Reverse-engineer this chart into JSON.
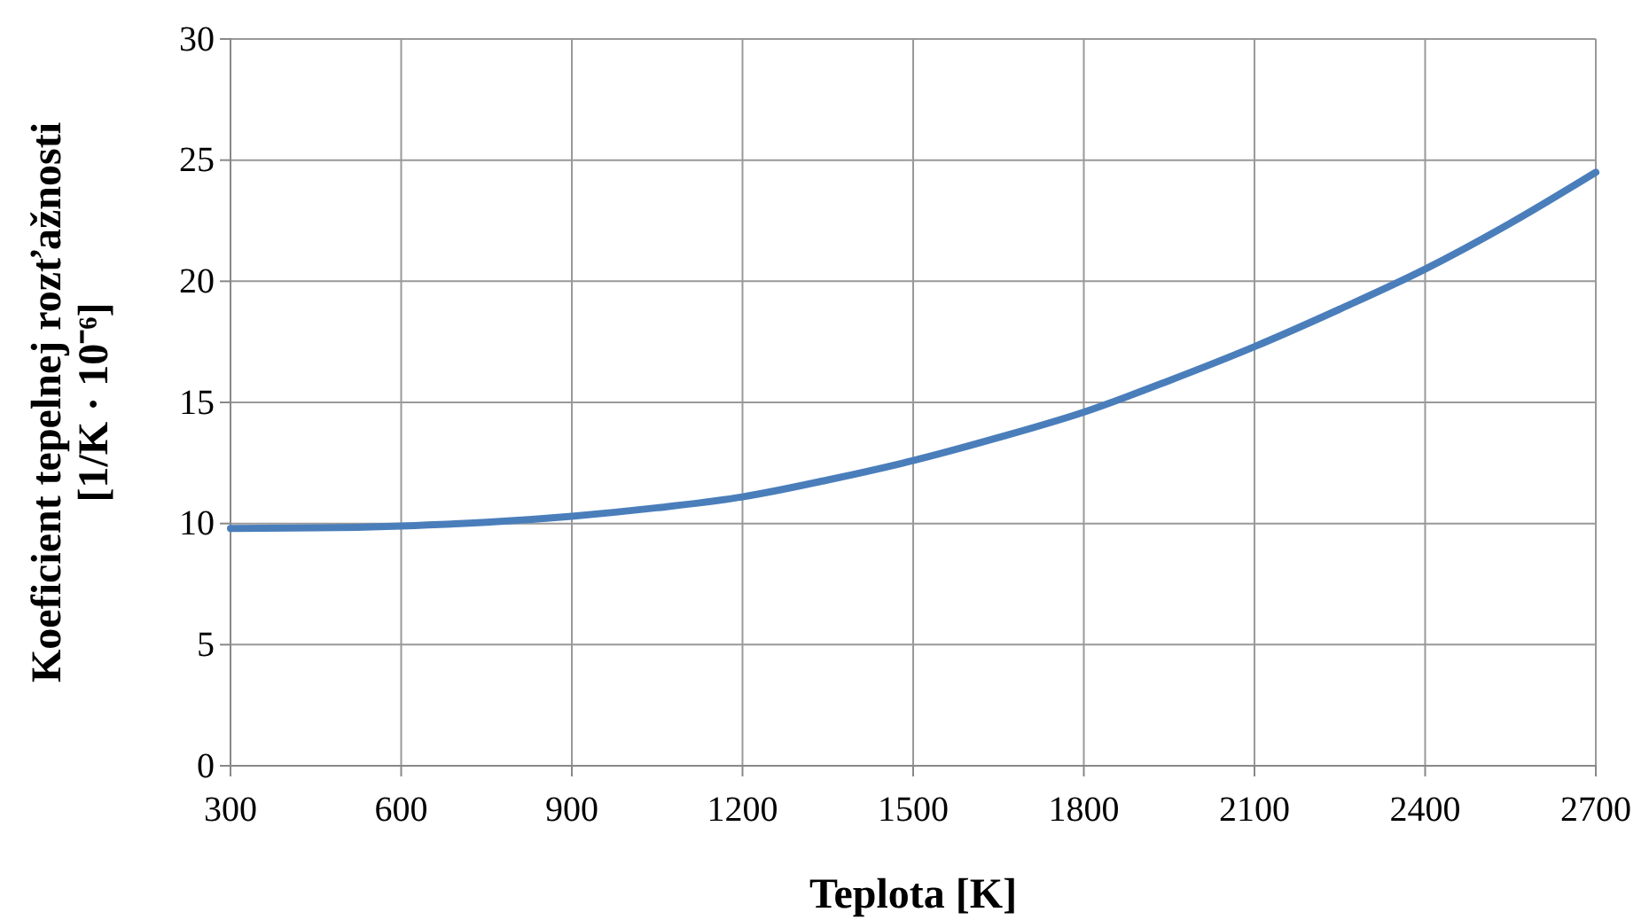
{
  "chart_data": {
    "type": "line",
    "xlabel": "Teplota [K]",
    "ylabel": "Koeficient tepelnej rozťažnosti\n[1/K · 10⁻⁶]",
    "x": [
      300,
      450,
      600,
      750,
      900,
      1050,
      1200,
      1350,
      1500,
      1650,
      1800,
      1950,
      2100,
      2250,
      2400,
      2550,
      2700
    ],
    "series": [
      {
        "color": "#4a7ebb",
        "values": [
          9.8,
          9.82,
          9.9,
          10.05,
          10.3,
          10.65,
          11.1,
          11.8,
          12.6,
          13.55,
          14.6,
          15.9,
          17.3,
          18.85,
          20.5,
          22.4,
          24.5
        ]
      }
    ],
    "xlim": [
      300,
      2700
    ],
    "xticks": [
      300,
      600,
      900,
      1200,
      1500,
      1800,
      2100,
      2400,
      2700
    ],
    "ylim": [
      0,
      30
    ],
    "yticks": [
      0,
      5,
      10,
      15,
      20,
      25,
      30
    ],
    "grid": true,
    "marker": "none",
    "line_style": "solid"
  }
}
